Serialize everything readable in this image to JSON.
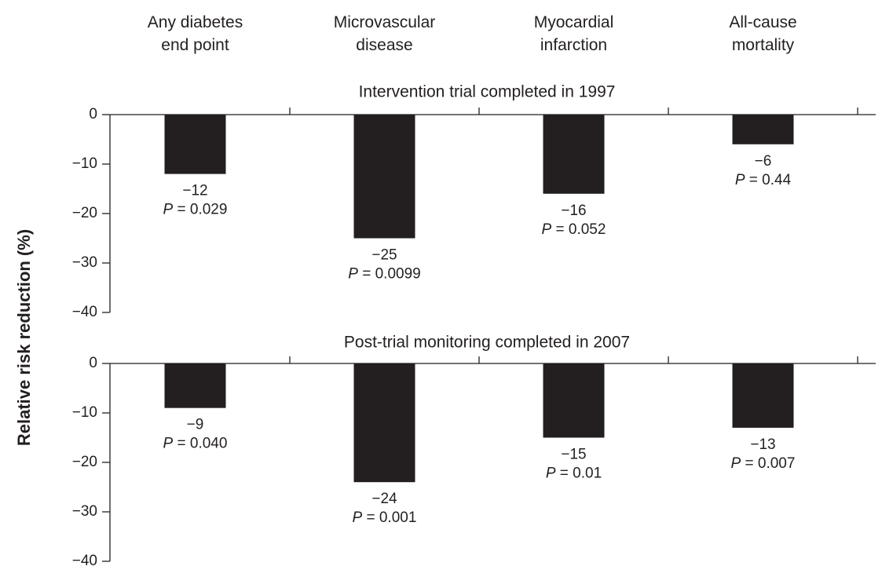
{
  "chart_data": {
    "type": "bar",
    "categories": [
      "Any diabetes\nend point",
      "Microvascular\ndisease",
      "Myocardial\ninfarction",
      "All-cause\nmortality"
    ],
    "ylabel": "Relative risk reduction (%)",
    "color": "#231f20",
    "panels": [
      {
        "title": "Intervention trial completed in 1997",
        "values": [
          -12,
          -25,
          -16,
          -6
        ],
        "value_labels": [
          "−12",
          "−25",
          "−16",
          "−6"
        ],
        "p_labels": [
          "P = 0.029",
          "P = 0.0099",
          "P = 0.052",
          "P = 0.44"
        ],
        "ylim": [
          -40,
          0
        ],
        "yticks": [
          0,
          {
            "value": -10,
            "label": "−10"
          },
          {
            "value": -20,
            "label": "−20"
          },
          {
            "value": -30,
            "label": "−30"
          },
          {
            "value": -40,
            "label": "−40"
          }
        ]
      },
      {
        "title": "Post-trial monitoring completed in 2007",
        "values": [
          -9,
          -24,
          -15,
          -13
        ],
        "value_labels": [
          "−9",
          "−24",
          "−15",
          "−13"
        ],
        "p_labels": [
          "P = 0.040",
          "P = 0.001",
          "P = 0.01",
          "P = 0.007"
        ],
        "ylim": [
          -40,
          0
        ],
        "yticks": [
          0,
          {
            "value": -10,
            "label": "−10"
          },
          {
            "value": -20,
            "label": "−20"
          },
          {
            "value": -30,
            "label": "−30"
          },
          {
            "value": -40,
            "label": "−40"
          }
        ]
      }
    ]
  }
}
